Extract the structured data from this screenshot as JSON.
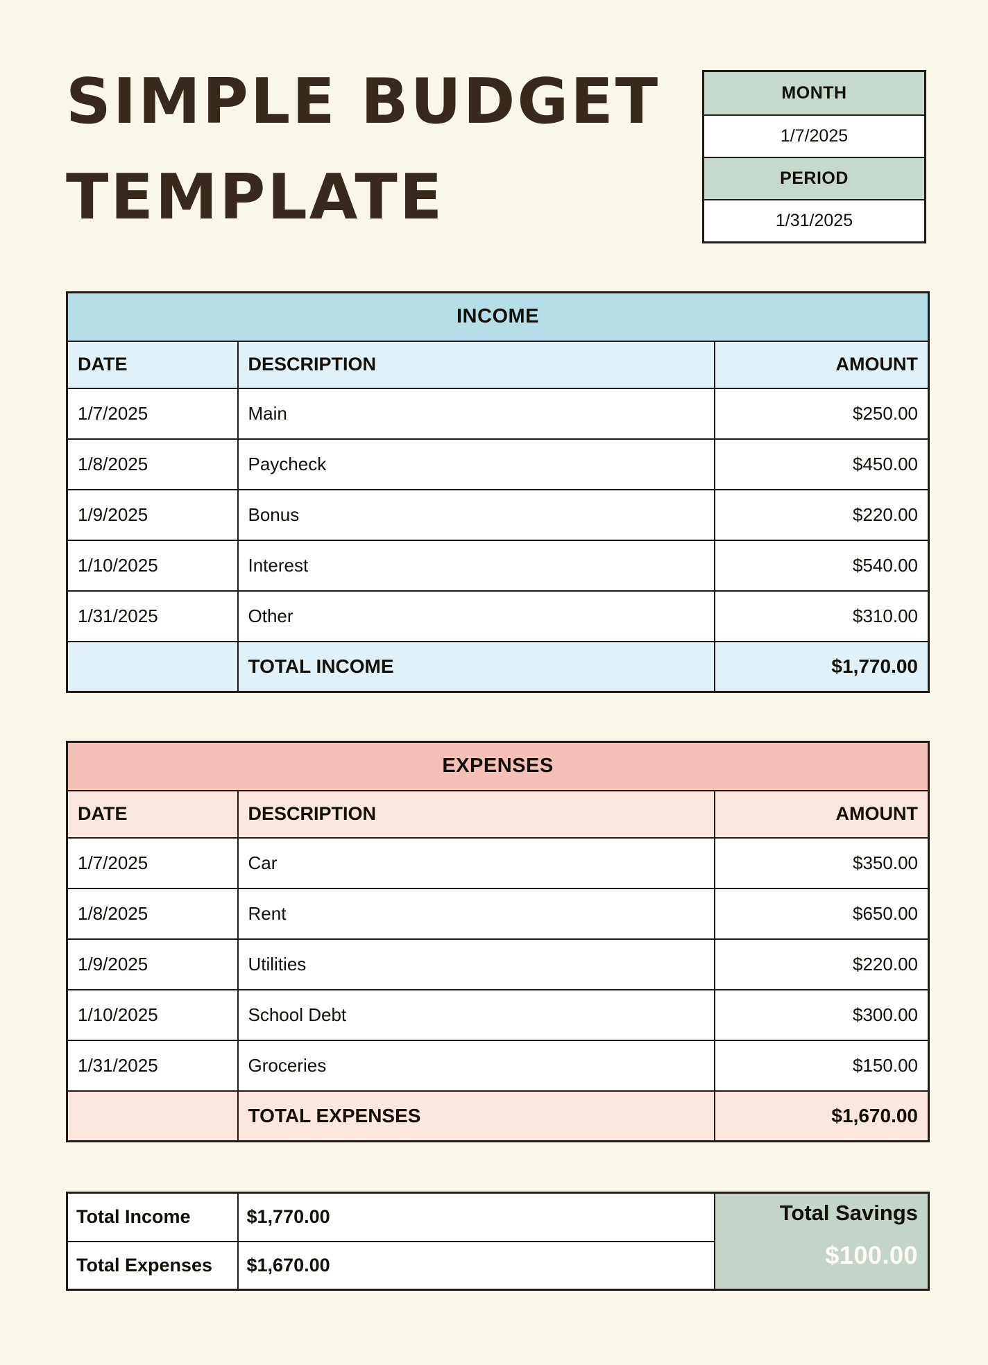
{
  "page": {
    "title_line1": "SIMPLE BUDGET",
    "title_line2": "TEMPLATE"
  },
  "meta_box": {
    "month_label": "MONTH",
    "month_value": "1/7/2025",
    "period_label": "PERIOD",
    "period_value": "1/31/2025"
  },
  "income": {
    "title": "INCOME",
    "columns": {
      "date": "DATE",
      "description": "DESCRIPTION",
      "amount": "AMOUNT"
    },
    "rows": [
      {
        "date": "1/7/2025",
        "description": "Main",
        "amount": "$250.00"
      },
      {
        "date": "1/8/2025",
        "description": "Paycheck",
        "amount": "$450.00"
      },
      {
        "date": "1/9/2025",
        "description": "Bonus",
        "amount": "$220.00"
      },
      {
        "date": "1/10/2025",
        "description": "Interest",
        "amount": "$540.00"
      },
      {
        "date": "1/31/2025",
        "description": "Other",
        "amount": "$310.00"
      }
    ],
    "total_label": "TOTAL INCOME",
    "total_amount": "$1,770.00"
  },
  "expenses": {
    "title": "EXPENSES",
    "columns": {
      "date": "DATE",
      "description": "DESCRIPTION",
      "amount": "AMOUNT"
    },
    "rows": [
      {
        "date": "1/7/2025",
        "description": "Car",
        "amount": "$350.00"
      },
      {
        "date": "1/8/2025",
        "description": "Rent",
        "amount": "$650.00"
      },
      {
        "date": "1/9/2025",
        "description": "Utilities",
        "amount": "$220.00"
      },
      {
        "date": "1/10/2025",
        "description": "School Debt",
        "amount": "$300.00"
      },
      {
        "date": "1/31/2025",
        "description": "Groceries",
        "amount": "$150.00"
      }
    ],
    "total_label": "TOTAL EXPENSES",
    "total_amount": "$1,670.00"
  },
  "summary": {
    "total_income_label": "Total Income",
    "total_income_value": "$1,770.00",
    "total_expenses_label": "Total Expenses",
    "total_expenses_value": "$1,670.00",
    "savings_label": "Total Savings",
    "savings_value": "$100.00"
  },
  "colors": {
    "page_background": "#f9f7e9",
    "border": "#201b16",
    "title_text": "#38291e",
    "sage_header": "#c7d9cc",
    "savings_box": "#c4d4c8",
    "income_band": "#b5dee8",
    "income_light": "#e2f1f8",
    "expenses_band": "#f5c1b6",
    "expenses_light": "#fbe7e0",
    "savings_value_text": "#fbfaf3"
  }
}
